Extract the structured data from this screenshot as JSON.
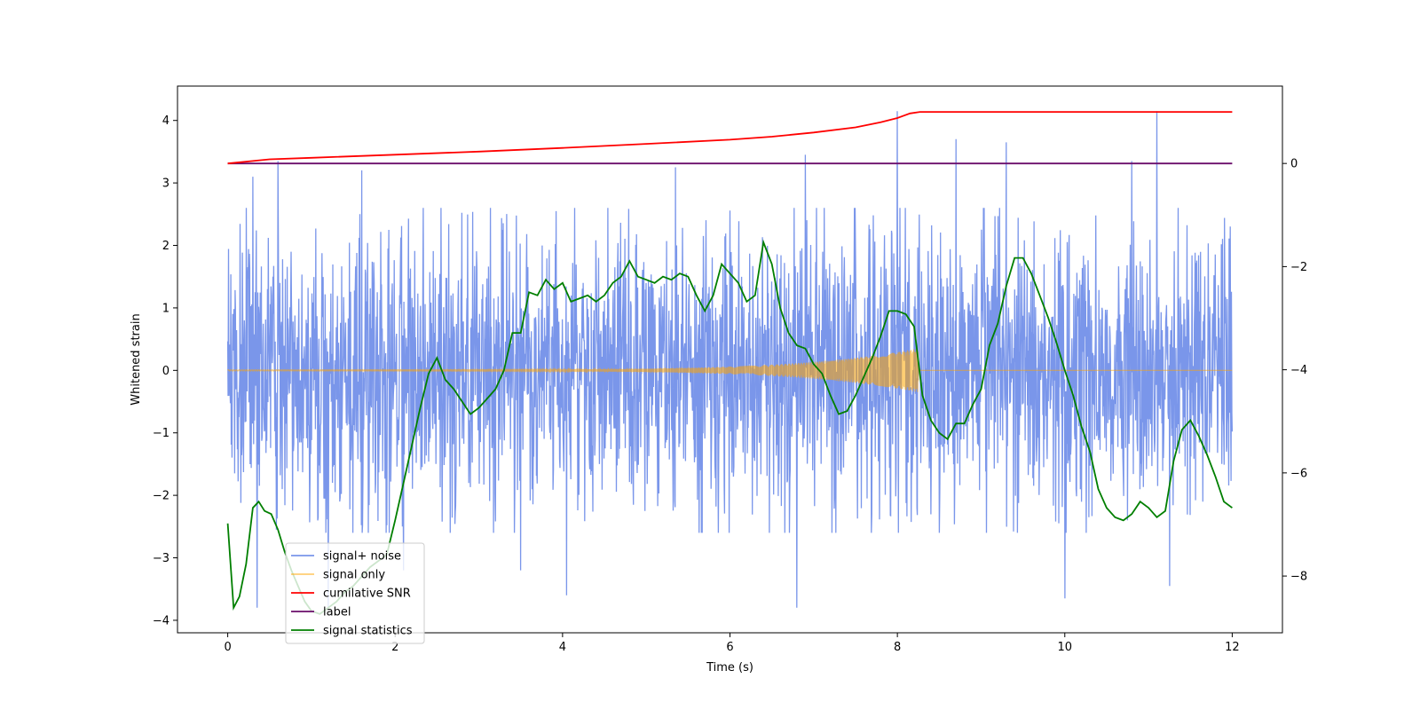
{
  "chart_data": {
    "type": "line",
    "title": "",
    "xlabel": "Time (s)",
    "ylabel": "Whitened strain",
    "xlim": [
      -0.6,
      12.6
    ],
    "ylim": [
      -4.2,
      4.55
    ],
    "y2lim": [
      -9.1,
      1.5
    ],
    "x_ticks": [
      0,
      2,
      4,
      6,
      8,
      10,
      12
    ],
    "y_ticks": [
      -4,
      -3,
      -2,
      -1,
      0,
      1,
      2,
      3,
      4
    ],
    "y2_ticks": [
      -8,
      -6,
      -4,
      -2,
      0
    ],
    "grid": false,
    "legend_position": "lower-left",
    "series": [
      {
        "name": "signal+ noise",
        "axis": "left",
        "color": "#4169e1",
        "style": "dense noise",
        "x_range": [
          0,
          12
        ],
        "envelope_upper": 2.5,
        "envelope_lower": -2.5,
        "peaks": [
          [
            0.6,
            3.35
          ],
          [
            0.3,
            3.1
          ],
          [
            1.6,
            3.2
          ],
          [
            5.35,
            3.25
          ],
          [
            6.9,
            3.45
          ],
          [
            8.0,
            4.15
          ],
          [
            8.7,
            3.7
          ],
          [
            9.3,
            3.65
          ],
          [
            10.8,
            3.35
          ],
          [
            11.1,
            4.15
          ],
          [
            0.35,
            -3.8
          ],
          [
            1.2,
            -3.8
          ],
          [
            4.05,
            -3.6
          ],
          [
            6.8,
            -3.8
          ],
          [
            10.0,
            -3.65
          ],
          [
            11.25,
            -3.45
          ],
          [
            2.1,
            -3.2
          ],
          [
            3.5,
            -3.2
          ]
        ]
      },
      {
        "name": "signal only",
        "axis": "left",
        "color": "#ffa500",
        "style": "chirp",
        "x_range": [
          0,
          8.25
        ],
        "amplitude_start": 0.01,
        "amplitude_end": 0.35
      },
      {
        "name": "cumilative SNR",
        "axis": "right",
        "color": "#ff0000",
        "x": [
          0,
          0.5,
          1,
          2,
          3,
          4,
          5,
          6,
          6.5,
          7,
          7.5,
          7.8,
          8.0,
          8.15,
          8.27,
          9,
          10,
          11,
          12
        ],
        "values": [
          0.0,
          0.08,
          0.11,
          0.17,
          0.23,
          0.3,
          0.38,
          0.46,
          0.52,
          0.6,
          0.7,
          0.8,
          0.88,
          0.97,
          1.0,
          1.0,
          1.0,
          1.0,
          1.0
        ]
      },
      {
        "name": "label",
        "axis": "right",
        "color": "#6a0d6a",
        "x": [
          0,
          12
        ],
        "values": [
          0,
          0
        ]
      },
      {
        "name": "signal statistics",
        "axis": "left",
        "color": "#007f00",
        "x": [
          0,
          0.07,
          0.14,
          0.22,
          0.3,
          0.37,
          0.44,
          0.52,
          0.6,
          0.68,
          0.76,
          0.84,
          0.92,
          1.0,
          1.1,
          1.2,
          1.3,
          1.4,
          1.5,
          1.6,
          1.7,
          1.8,
          1.9,
          2.0,
          2.1,
          2.2,
          2.3,
          2.4,
          2.5,
          2.6,
          2.7,
          2.8,
          2.9,
          3.0,
          3.1,
          3.2,
          3.3,
          3.4,
          3.5,
          3.6,
          3.7,
          3.8,
          3.9,
          4.0,
          4.1,
          4.2,
          4.3,
          4.4,
          4.5,
          4.6,
          4.7,
          4.8,
          4.9,
          5.0,
          5.1,
          5.2,
          5.3,
          5.4,
          5.5,
          5.6,
          5.7,
          5.8,
          5.9,
          6.0,
          6.1,
          6.2,
          6.3,
          6.4,
          6.5,
          6.6,
          6.7,
          6.8,
          6.9,
          7.0,
          7.1,
          7.2,
          7.3,
          7.4,
          7.5,
          7.6,
          7.7,
          7.8,
          7.9,
          8.0,
          8.1,
          8.2,
          8.3,
          8.4,
          8.5,
          8.6,
          8.7,
          8.8,
          8.9,
          9.0,
          9.1,
          9.2,
          9.3,
          9.4,
          9.5,
          9.6,
          9.7,
          9.8,
          9.9,
          10.0,
          10.1,
          10.2,
          10.3,
          10.4,
          10.5,
          10.6,
          10.7,
          10.8,
          10.9,
          11.0,
          11.1,
          11.2,
          11.3,
          11.4,
          11.5,
          11.6,
          11.7,
          11.8,
          11.9,
          12.0
        ],
        "values": [
          -2.45,
          -3.8,
          -3.62,
          -3.1,
          -2.2,
          -2.1,
          -2.25,
          -2.3,
          -2.55,
          -2.9,
          -3.2,
          -3.45,
          -3.7,
          -3.85,
          -3.9,
          -3.8,
          -3.7,
          -3.55,
          -3.45,
          -3.3,
          -3.15,
          -3.05,
          -2.95,
          -2.4,
          -1.8,
          -1.2,
          -0.6,
          -0.05,
          0.2,
          -0.15,
          -0.3,
          -0.5,
          -0.7,
          -0.6,
          -0.45,
          -0.3,
          0.0,
          0.6,
          0.6,
          1.25,
          1.2,
          1.45,
          1.3,
          1.4,
          1.1,
          1.15,
          1.2,
          1.1,
          1.2,
          1.4,
          1.5,
          1.75,
          1.5,
          1.45,
          1.4,
          1.5,
          1.45,
          1.55,
          1.5,
          1.2,
          0.95,
          1.2,
          1.7,
          1.55,
          1.4,
          1.1,
          1.2,
          2.05,
          1.7,
          1.0,
          0.6,
          0.4,
          0.35,
          0.1,
          -0.05,
          -0.4,
          -0.7,
          -0.65,
          -0.4,
          -0.1,
          0.2,
          0.55,
          0.95,
          0.95,
          0.9,
          0.7,
          -0.4,
          -0.8,
          -1.0,
          -1.1,
          -0.85,
          -0.85,
          -0.55,
          -0.3,
          0.4,
          0.75,
          1.35,
          1.8,
          1.8,
          1.55,
          1.2,
          0.85,
          0.45,
          0.0,
          -0.4,
          -0.9,
          -1.3,
          -1.9,
          -2.2,
          -2.35,
          -2.4,
          -2.3,
          -2.1,
          -2.2,
          -2.35,
          -2.25,
          -1.45,
          -0.95,
          -0.8,
          -1.05,
          -1.35,
          -1.7,
          -2.1,
          -2.2
        ]
      }
    ]
  }
}
